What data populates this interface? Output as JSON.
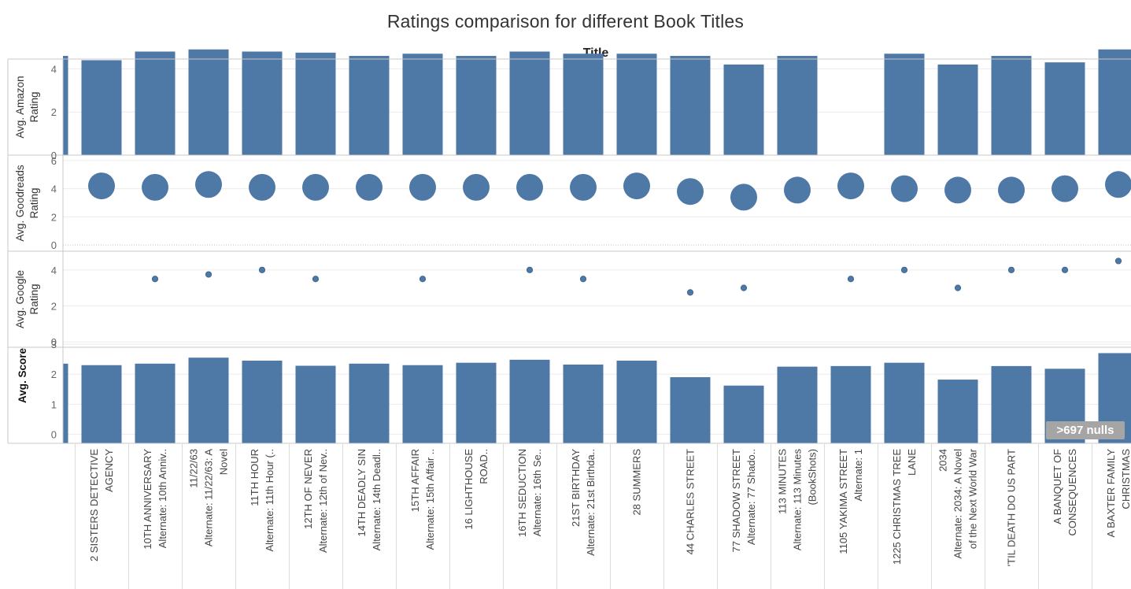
{
  "title": "Ratings comparison for different Book Titles",
  "column_header": "Title",
  "null_badge": ">697 nulls",
  "colors": {
    "mark": "#4e79a7",
    "axis": "#c8c8c8",
    "grid": "#ececec"
  },
  "chart_data": [
    {
      "type": "bar",
      "ylabel": [
        "Avg. Amazon",
        "Rating"
      ],
      "ylim": [
        0,
        5
      ],
      "yticks": [
        0,
        2,
        4
      ],
      "values": [
        4.6,
        4.4,
        4.8,
        4.9,
        4.8,
        4.75,
        4.6,
        4.7,
        4.6,
        4.8,
        4.7,
        4.7,
        4.6,
        4.2,
        4.6,
        null,
        4.7,
        4.2,
        4.6,
        4.3,
        4.9
      ]
    },
    {
      "type": "scatter",
      "ylabel": [
        "Avg. Goodreads",
        "Rating"
      ],
      "ylim": [
        -0.5,
        6.5
      ],
      "yticks": [
        0,
        2,
        4,
        6
      ],
      "values": [
        4.2,
        4.2,
        4.1,
        4.3,
        4.1,
        4.1,
        4.1,
        4.1,
        4.1,
        4.1,
        4.1,
        4.2,
        3.8,
        3.4,
        3.9,
        4.2,
        4.0,
        3.9,
        3.9,
        4.0,
        4.3
      ]
    },
    {
      "type": "scatter",
      "ylabel": [
        "Avg. Google",
        "Rating"
      ],
      "ylim": [
        -0.3,
        5.0
      ],
      "yticks": [
        0,
        2,
        4
      ],
      "values": [
        null,
        null,
        3.5,
        3.75,
        4.0,
        3.5,
        null,
        3.5,
        null,
        4.0,
        3.5,
        null,
        2.75,
        3.0,
        null,
        3.5,
        4.0,
        3.0,
        4.0,
        4.0,
        4.5
      ]
    },
    {
      "type": "bar",
      "ylabel": [
        "Avg. Score"
      ],
      "ylim": [
        -0.3,
        3.0
      ],
      "yticks": [
        0,
        1,
        2,
        3
      ],
      "values": [
        2.35,
        2.3,
        2.35,
        2.55,
        2.45,
        2.28,
        2.35,
        2.3,
        2.38,
        2.48,
        2.32,
        2.45,
        1.9,
        1.62,
        2.25,
        2.27,
        2.38,
        1.82,
        2.27,
        2.18,
        2.7
      ]
    }
  ],
  "categories": [
    [
      ""
    ],
    [
      "2 SISTERS DETECTIVE",
      "AGENCY"
    ],
    [
      "10TH ANNIVERSARY",
      "Alternate: 10th Anniv.."
    ],
    [
      "11/22/63",
      "Alternate: 11/22/63: A",
      "Novel"
    ],
    [
      "11TH HOUR",
      "Alternate: 11th Hour (.."
    ],
    [
      "12TH OF NEVER",
      "Alternate: 12th of Nev.."
    ],
    [
      "14TH DEADLY SIN",
      "Alternate: 14th Deadl.."
    ],
    [
      "15TH AFFAIR",
      "Alternate: 15th Affair .."
    ],
    [
      "16 LIGHTHOUSE",
      "ROAD.."
    ],
    [
      "16TH SEDUCTION",
      "Alternate: 16th Se.."
    ],
    [
      "21ST BIRTHDAY",
      "Alternate: 21st Birthda.."
    ],
    [
      "28 SUMMERS"
    ],
    [
      "44 CHARLES STREET"
    ],
    [
      "77 SHADOW STREET",
      "Alternate: 77 Shado.."
    ],
    [
      "113 MINUTES",
      "Alternate: 113 Minutes",
      "(BookShots)"
    ],
    [
      "1105 YAKIMA STREET",
      "Alternate: 1"
    ],
    [
      "1225 CHRISTMAS TREE",
      "LANE"
    ],
    [
      "2034",
      "Alternate: 2034: A Novel",
      "of the Next World War"
    ],
    [
      "'TIL DEATH DO US PART"
    ],
    [
      "A BANQUET OF",
      "CONSEQUENCES"
    ],
    [
      "A BAXTER FAMILY",
      "CHRISTMAS"
    ]
  ]
}
